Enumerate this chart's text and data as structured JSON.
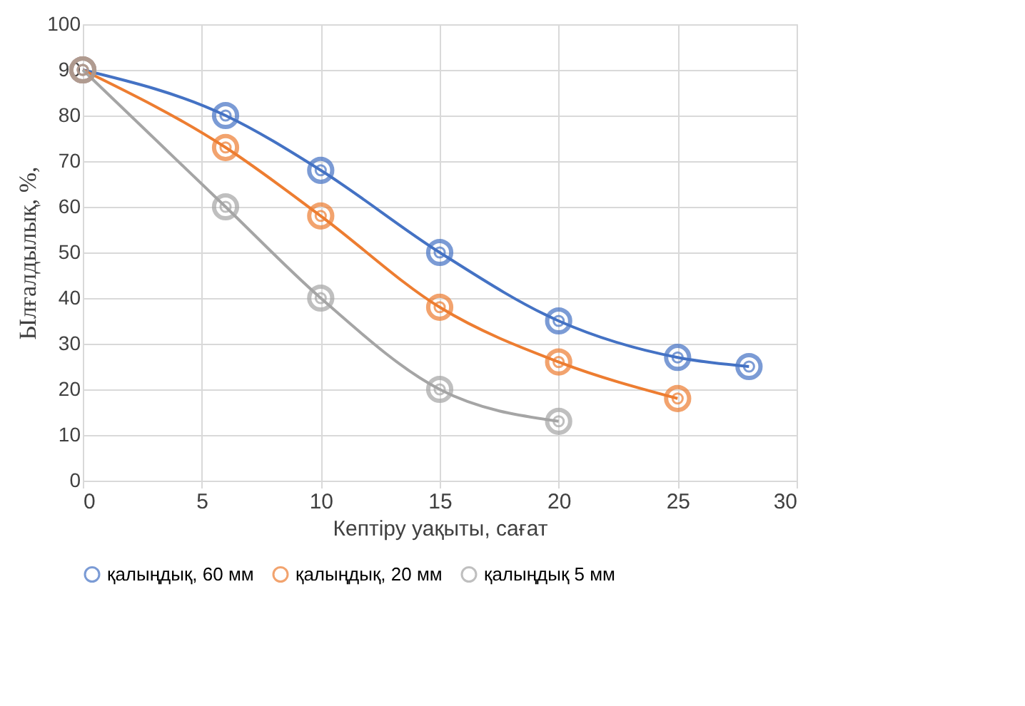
{
  "chart_data": {
    "type": "line",
    "xlabel": "Кептіру уақыты, сағат",
    "ylabel": "Ылғалдылық, %,",
    "xlim": [
      0,
      30
    ],
    "xticks": [
      0,
      5,
      10,
      15,
      20,
      25,
      30
    ],
    "ylim": [
      0,
      100
    ],
    "yticks": [
      0,
      10,
      20,
      30,
      40,
      50,
      60,
      70,
      80,
      90,
      100
    ],
    "grid": true,
    "legend": "bottom",
    "marker": "circle",
    "line_style": "solid",
    "series": [
      {
        "name": "қалыңдық, 60 мм",
        "color": "#4472c4",
        "x": [
          0,
          6,
          10,
          15,
          20,
          25,
          28
        ],
        "values": [
          90,
          80,
          68,
          50,
          35,
          27,
          25
        ]
      },
      {
        "name": "қалыңдық, 20 мм",
        "color": "#ed7d31",
        "x": [
          0,
          6,
          10,
          15,
          20,
          25
        ],
        "values": [
          90,
          73,
          58,
          38,
          26,
          18
        ]
      },
      {
        "name": "қалыңдық 5 мм",
        "color": "#a5a5a5",
        "x": [
          0,
          6,
          10,
          15,
          20
        ],
        "values": [
          90,
          60,
          40,
          20,
          13
        ]
      }
    ]
  }
}
